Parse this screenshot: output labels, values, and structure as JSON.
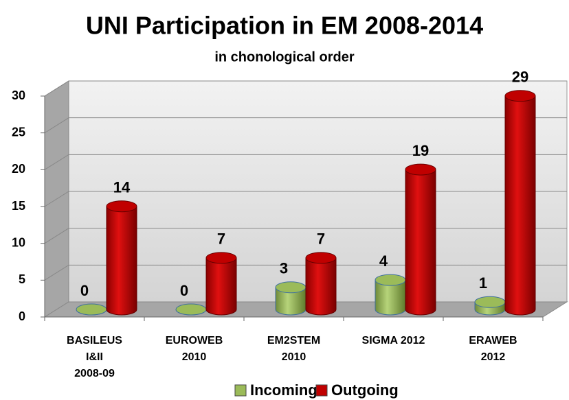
{
  "chart_data": {
    "type": "bar3d",
    "title": "UNI Participation in EM 2008-2014",
    "subtitle": "in chonological order",
    "categories": [
      [
        "BASILEUS",
        "I&II",
        "2008-09"
      ],
      [
        "EUROWEB",
        "2010"
      ],
      [
        "EM2STEM",
        "2010"
      ],
      [
        "SIGMA 2012"
      ],
      [
        "ERAWEB",
        "2012"
      ]
    ],
    "series": [
      {
        "name": "Incoming",
        "color": "#9bbb59",
        "values": [
          0,
          0,
          3,
          4,
          1
        ]
      },
      {
        "name": "Outgoing",
        "color": "#c00000",
        "values": [
          14,
          7,
          7,
          19,
          29
        ]
      }
    ],
    "ylim": [
      0,
      30
    ],
    "yticks": [
      0,
      5,
      10,
      15,
      20,
      25,
      30
    ],
    "grid": true,
    "legend": "bottom"
  }
}
